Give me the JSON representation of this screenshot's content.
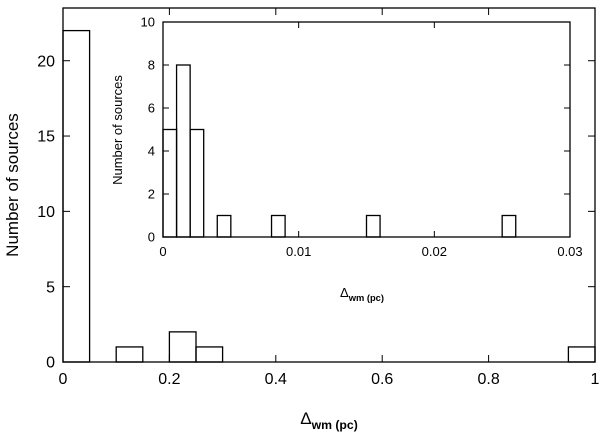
{
  "chart_data": [
    {
      "type": "bar",
      "chart_kind": "histogram",
      "xlabel": "Δ",
      "xlabel_sub": "wm (pc)",
      "ylabel": "Number of sources",
      "xlim": [
        0,
        1
      ],
      "ylim": [
        0,
        23.5
      ],
      "x_ticks": [
        "0",
        "0.2",
        "0.4",
        "0.6",
        "0.8",
        "1"
      ],
      "x_tick_values": [
        0,
        0.2,
        0.4,
        0.6,
        0.8,
        1
      ],
      "y_ticks": [
        "0",
        "5",
        "10",
        "15",
        "20"
      ],
      "y_tick_values": [
        0,
        5,
        10,
        15,
        20
      ],
      "bin_width": 0.05,
      "bins": [
        {
          "x0": 0.0,
          "count": 22
        },
        {
          "x0": 0.1,
          "count": 1
        },
        {
          "x0": 0.2,
          "count": 2
        },
        {
          "x0": 0.25,
          "count": 1
        },
        {
          "x0": 0.95,
          "count": 1
        }
      ],
      "grid": false
    },
    {
      "type": "bar",
      "chart_kind": "histogram",
      "position": "inset",
      "xlabel": "Δ",
      "xlabel_sub": "wm (pc)",
      "ylabel": "Number of sources",
      "xlim": [
        0,
        0.03
      ],
      "ylim": [
        0,
        10
      ],
      "x_ticks": [
        "0",
        "0.01",
        "0.02",
        "0.03"
      ],
      "x_tick_values": [
        0,
        0.01,
        0.02,
        0.03
      ],
      "y_ticks": [
        "0",
        "2",
        "4",
        "6",
        "8",
        "10"
      ],
      "y_tick_values": [
        0,
        2,
        4,
        6,
        8,
        10
      ],
      "bin_width": 0.001,
      "bins": [
        {
          "x0": 0.0,
          "count": 5
        },
        {
          "x0": 0.001,
          "count": 8
        },
        {
          "x0": 0.002,
          "count": 5
        },
        {
          "x0": 0.004,
          "count": 1
        },
        {
          "x0": 0.008,
          "count": 1
        },
        {
          "x0": 0.015,
          "count": 1
        },
        {
          "x0": 0.025,
          "count": 1
        }
      ],
      "grid": false
    }
  ]
}
